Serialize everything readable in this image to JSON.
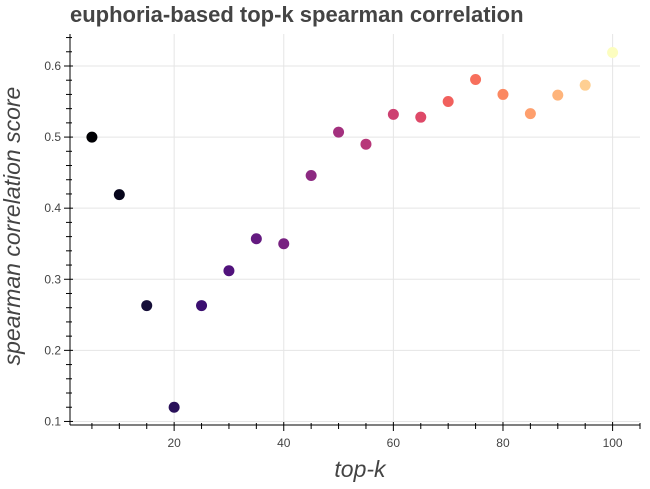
{
  "chart_data": {
    "type": "scatter",
    "title": "euphoria-based top-k spearman correlation",
    "xlabel": "top-k",
    "ylabel": "spearman correlation score",
    "xlim": [
      1,
      105
    ],
    "ylim": [
      0.095,
      0.645
    ],
    "xticks": [
      20,
      40,
      60,
      80,
      100
    ],
    "xminor": [
      5,
      10,
      15,
      25,
      30,
      35,
      45,
      50,
      55,
      65,
      70,
      75,
      85,
      90,
      95,
      105
    ],
    "yticks": [
      0.1,
      0.2,
      0.3,
      0.4,
      0.5,
      0.6
    ],
    "ytick_labels": [
      "0.1",
      "0.2",
      "0.3",
      "0.4",
      "0.5",
      "0.6"
    ],
    "grid": true,
    "colormap": "magma",
    "points": [
      {
        "x": 5,
        "y": 0.5,
        "color": "#000004"
      },
      {
        "x": 10,
        "y": 0.419,
        "color": "#07061c"
      },
      {
        "x": 15,
        "y": 0.263,
        "color": "#150e38"
      },
      {
        "x": 20,
        "y": 0.12,
        "color": "#2a115a"
      },
      {
        "x": 25,
        "y": 0.263,
        "color": "#3b0f70"
      },
      {
        "x": 30,
        "y": 0.312,
        "color": "#51127c"
      },
      {
        "x": 35,
        "y": 0.357,
        "color": "#641a80"
      },
      {
        "x": 40,
        "y": 0.35,
        "color": "#782281"
      },
      {
        "x": 45,
        "y": 0.446,
        "color": "#8c2981"
      },
      {
        "x": 50,
        "y": 0.507,
        "color": "#a3307e"
      },
      {
        "x": 55,
        "y": 0.49,
        "color": "#b73779"
      },
      {
        "x": 60,
        "y": 0.532,
        "color": "#cd4071"
      },
      {
        "x": 65,
        "y": 0.528,
        "color": "#de4968"
      },
      {
        "x": 70,
        "y": 0.55,
        "color": "#f1605d"
      },
      {
        "x": 75,
        "y": 0.581,
        "color": "#f76f5c"
      },
      {
        "x": 80,
        "y": 0.56,
        "color": "#fb8861"
      },
      {
        "x": 85,
        "y": 0.533,
        "color": "#fe9f6d"
      },
      {
        "x": 90,
        "y": 0.559,
        "color": "#feb47b"
      },
      {
        "x": 95,
        "y": 0.573,
        "color": "#fecf92"
      },
      {
        "x": 100,
        "y": 0.619,
        "color": "#fcfdbf"
      }
    ]
  }
}
